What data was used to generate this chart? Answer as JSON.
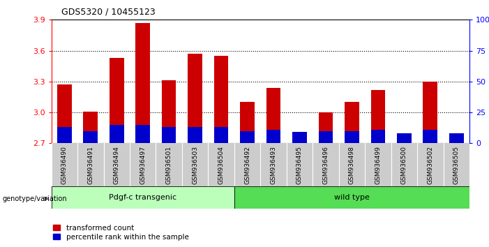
{
  "title": "GDS5320 / 10455123",
  "samples": [
    "GSM936490",
    "GSM936491",
    "GSM936494",
    "GSM936497",
    "GSM936501",
    "GSM936503",
    "GSM936504",
    "GSM936492",
    "GSM936493",
    "GSM936495",
    "GSM936496",
    "GSM936498",
    "GSM936499",
    "GSM936500",
    "GSM936502",
    "GSM936505"
  ],
  "transformed_count": [
    3.27,
    3.01,
    3.53,
    3.87,
    3.31,
    3.57,
    3.55,
    3.1,
    3.24,
    2.78,
    3.0,
    3.1,
    3.22,
    2.77,
    3.3,
    2.75
  ],
  "percentile_rank": [
    13,
    10,
    15,
    15,
    13,
    13,
    13,
    10,
    11,
    9,
    10,
    10,
    11,
    8,
    11,
    8
  ],
  "ymin": 2.7,
  "ymax": 3.9,
  "yticks_left": [
    2.7,
    3.0,
    3.3,
    3.6,
    3.9
  ],
  "yticks_right": [
    0,
    25,
    50,
    75,
    100
  ],
  "right_ytick_labels": [
    "0",
    "25",
    "50",
    "75",
    "100%"
  ],
  "group1_label": "Pdgf-c transgenic",
  "group1_count": 7,
  "group2_label": "wild type",
  "group2_count": 9,
  "bar_color": "#cc0000",
  "percentile_color": "#0000cc",
  "group1_bg": "#bbffbb",
  "group2_bg": "#55dd55",
  "tick_bg": "#cccccc",
  "legend_bar": "transformed count",
  "legend_pct": "percentile rank within the sample",
  "bar_width": 0.55,
  "genotype_label": "genotype/variation"
}
